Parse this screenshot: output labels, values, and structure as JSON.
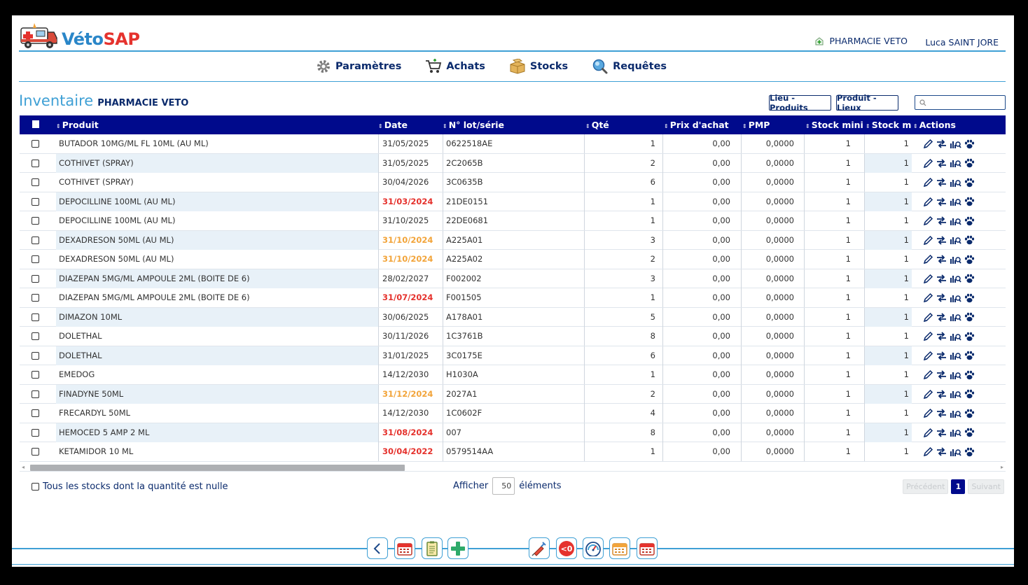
{
  "app": {
    "brand_part1": "Véto",
    "brand_part2": "SAP"
  },
  "header": {
    "pharmacy": "PHARMACIE VETO",
    "user": "Luca SAINT JORE"
  },
  "menu": [
    {
      "label": "Paramètres",
      "icon": "gear-icon"
    },
    {
      "label": "Achats",
      "icon": "cart-icon"
    },
    {
      "label": "Stocks",
      "icon": "boxes-icon"
    },
    {
      "label": "Requêtes",
      "icon": "magnifier-icon"
    }
  ],
  "page": {
    "title": "Inventaire",
    "subtitle": "PHARMACIE VETO"
  },
  "toolbar": {
    "btn_lieu_produits": "Lieu - Produits",
    "btn_produit_lieux": "Produit - Lieux",
    "search_value": ""
  },
  "table": {
    "columns": [
      "Produit",
      "Date",
      "N° lot/série",
      "Qté",
      "Prix d'achat",
      "PMP",
      "Stock mini",
      "Stock max",
      "Actions"
    ],
    "rows": [
      {
        "produit": "BUTADOR 10MG/ML FL 10ML (AU ML)",
        "date": "31/05/2025",
        "date_status": "ok",
        "lot": "0622518AE",
        "qte": "1",
        "prix": "0,00",
        "pmp": "0,0000",
        "smin": "1",
        "smax": "1"
      },
      {
        "produit": "COTHIVET (SPRAY)",
        "date": "31/05/2025",
        "date_status": "ok",
        "lot": "2C2065B",
        "qte": "2",
        "prix": "0,00",
        "pmp": "0,0000",
        "smin": "1",
        "smax": "1"
      },
      {
        "produit": "COTHIVET (SPRAY)",
        "date": "30/04/2026",
        "date_status": "ok",
        "lot": "3C0635B",
        "qte": "6",
        "prix": "0,00",
        "pmp": "0,0000",
        "smin": "1",
        "smax": "1"
      },
      {
        "produit": "DEPOCILLINE 100ML (AU ML)",
        "date": "31/03/2024",
        "date_status": "expired",
        "lot": "21DE0151",
        "qte": "1",
        "prix": "0,00",
        "pmp": "0,0000",
        "smin": "1",
        "smax": "1"
      },
      {
        "produit": "DEPOCILLINE 100ML (AU ML)",
        "date": "31/10/2025",
        "date_status": "ok",
        "lot": "22DE0681",
        "qte": "1",
        "prix": "0,00",
        "pmp": "0,0000",
        "smin": "1",
        "smax": "1"
      },
      {
        "produit": "DEXADRESON 50ML (AU ML)",
        "date": "31/10/2024",
        "date_status": "warning",
        "lot": "A225A01",
        "qte": "3",
        "prix": "0,00",
        "pmp": "0,0000",
        "smin": "1",
        "smax": "1"
      },
      {
        "produit": "DEXADRESON 50ML (AU ML)",
        "date": "31/10/2024",
        "date_status": "warning",
        "lot": "A225A02",
        "qte": "2",
        "prix": "0,00",
        "pmp": "0,0000",
        "smin": "1",
        "smax": "1"
      },
      {
        "produit": "DIAZEPAN 5MG/ML AMPOULE 2ML (BOITE DE 6)",
        "date": "28/02/2027",
        "date_status": "ok",
        "lot": "F002002",
        "qte": "3",
        "prix": "0,00",
        "pmp": "0,0000",
        "smin": "1",
        "smax": "1"
      },
      {
        "produit": "DIAZEPAN 5MG/ML AMPOULE 2ML (BOITE DE 6)",
        "date": "31/07/2024",
        "date_status": "expired",
        "lot": "F001505",
        "qte": "1",
        "prix": "0,00",
        "pmp": "0,0000",
        "smin": "1",
        "smax": "1"
      },
      {
        "produit": "DIMAZON 10ML",
        "date": "30/06/2025",
        "date_status": "ok",
        "lot": "A178A01",
        "qte": "5",
        "prix": "0,00",
        "pmp": "0,0000",
        "smin": "1",
        "smax": "1"
      },
      {
        "produit": "DOLETHAL",
        "date": "30/11/2026",
        "date_status": "ok",
        "lot": "1C3761B",
        "qte": "8",
        "prix": "0,00",
        "pmp": "0,0000",
        "smin": "1",
        "smax": "1"
      },
      {
        "produit": "DOLETHAL",
        "date": "31/01/2025",
        "date_status": "ok",
        "lot": "3C0175E",
        "qte": "6",
        "prix": "0,00",
        "pmp": "0,0000",
        "smin": "1",
        "smax": "1"
      },
      {
        "produit": "EMEDOG",
        "date": "14/12/2030",
        "date_status": "ok",
        "lot": "H1030A",
        "qte": "1",
        "prix": "0,00",
        "pmp": "0,0000",
        "smin": "1",
        "smax": "1"
      },
      {
        "produit": "FINADYNE 50ML",
        "date": "31/12/2024",
        "date_status": "warning",
        "lot": "2027A1",
        "qte": "2",
        "prix": "0,00",
        "pmp": "0,0000",
        "smin": "1",
        "smax": "1"
      },
      {
        "produit": "FRECARDYL 50ML",
        "date": "14/12/2030",
        "date_status": "ok",
        "lot": "1C0602F",
        "qte": "4",
        "prix": "0,00",
        "pmp": "0,0000",
        "smin": "1",
        "smax": "1"
      },
      {
        "produit": "HEMOCED 5 AMP 2 ML",
        "date": "31/08/2024",
        "date_status": "expired",
        "lot": "007",
        "qte": "8",
        "prix": "0,00",
        "pmp": "0,0000",
        "smin": "1",
        "smax": "1"
      },
      {
        "produit": "KETAMIDOR 10 ML",
        "date": "30/04/2022",
        "date_status": "expired",
        "lot": "0579514AA",
        "qte": "1",
        "prix": "0,00",
        "pmp": "0,0000",
        "smin": "1",
        "smax": "1"
      }
    ]
  },
  "footer": {
    "null_stock_label": "Tous les stocks dont la quantité est nulle",
    "show_prefix": "Afficher",
    "page_size": "50",
    "show_suffix": "éléments",
    "prev": "Précédent",
    "current_page": "1",
    "next": "Suivant"
  },
  "colors": {
    "accent": "#3fa0d5",
    "header_bg": "#000a8c",
    "expired": "#e5322d",
    "warning": "#f2a43a",
    "text_dark": "#0a2a6c"
  }
}
